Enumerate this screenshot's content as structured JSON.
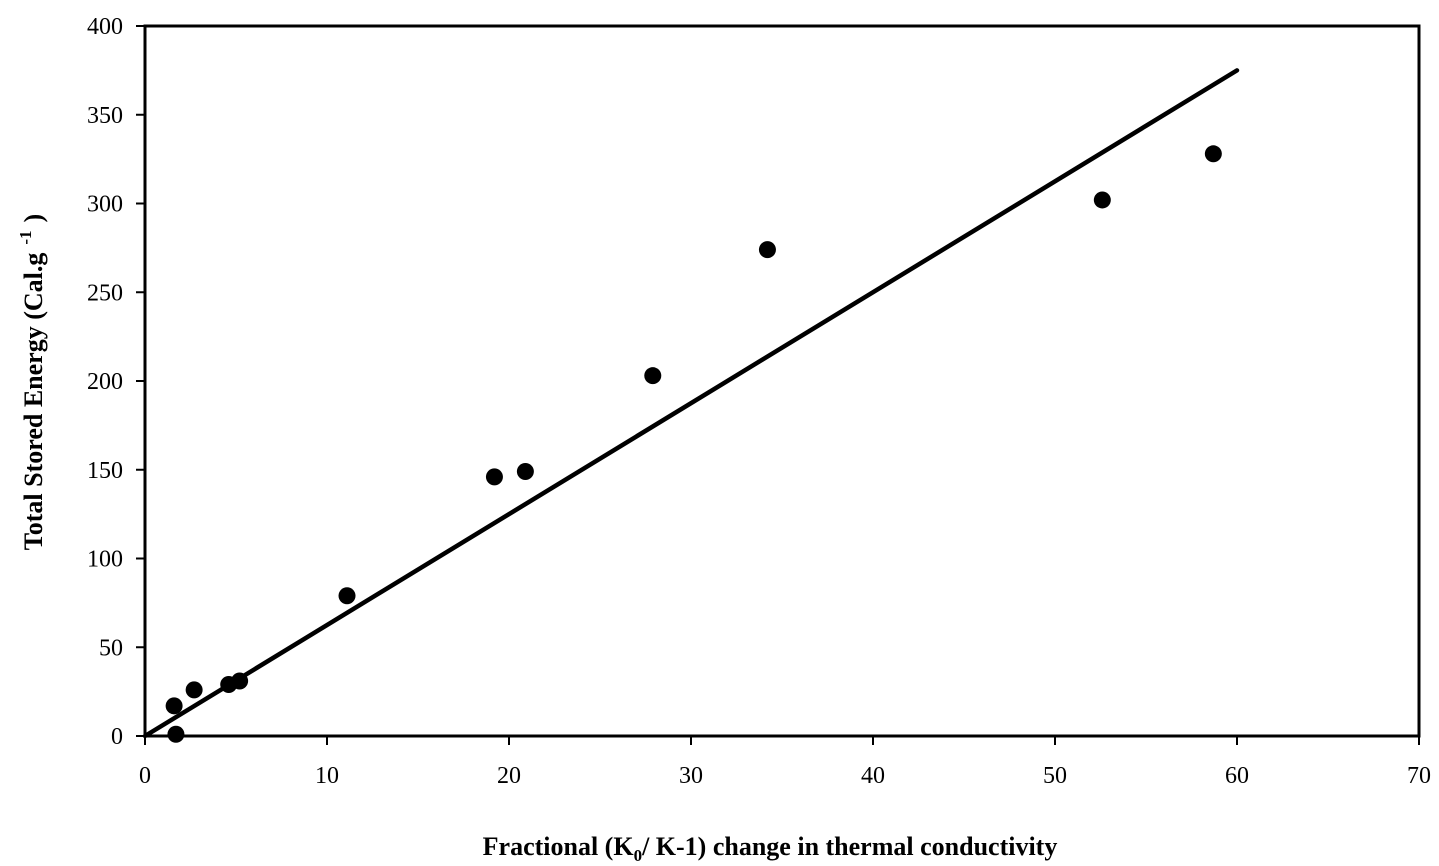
{
  "chart_data": {
    "type": "scatter",
    "xlabel": {
      "before_sub": "Fractional (K",
      "sub": "0",
      "after_sub": "/ K-1) change in thermal conductivity"
    },
    "ylabel": {
      "base": "Total Stored Energy (Cal.g",
      "sup": "-1",
      "close": ")"
    },
    "xlim": [
      0,
      70
    ],
    "ylim": [
      0,
      400
    ],
    "x_ticks": [
      0,
      10,
      20,
      30,
      40,
      50,
      60,
      70
    ],
    "y_ticks": [
      0,
      50,
      100,
      150,
      200,
      250,
      300,
      350,
      400
    ],
    "grid": false,
    "legend": "none",
    "series": [
      {
        "type": "scatter",
        "marker": "filled-circle",
        "color": "#000000",
        "points": [
          {
            "x": 1.6,
            "y": 17
          },
          {
            "x": 1.7,
            "y": 1
          },
          {
            "x": 2.7,
            "y": 26
          },
          {
            "x": 4.6,
            "y": 29
          },
          {
            "x": 5.2,
            "y": 31
          },
          {
            "x": 11.1,
            "y": 79
          },
          {
            "x": 19.2,
            "y": 146
          },
          {
            "x": 20.9,
            "y": 149
          },
          {
            "x": 27.9,
            "y": 203
          },
          {
            "x": 34.2,
            "y": 274
          },
          {
            "x": 52.6,
            "y": 302
          },
          {
            "x": 58.7,
            "y": 328
          }
        ]
      },
      {
        "type": "line",
        "kind": "linear-fit",
        "color": "#000000",
        "points": [
          {
            "x": 0,
            "y": 0
          },
          {
            "x": 60,
            "y": 375
          }
        ]
      }
    ]
  }
}
